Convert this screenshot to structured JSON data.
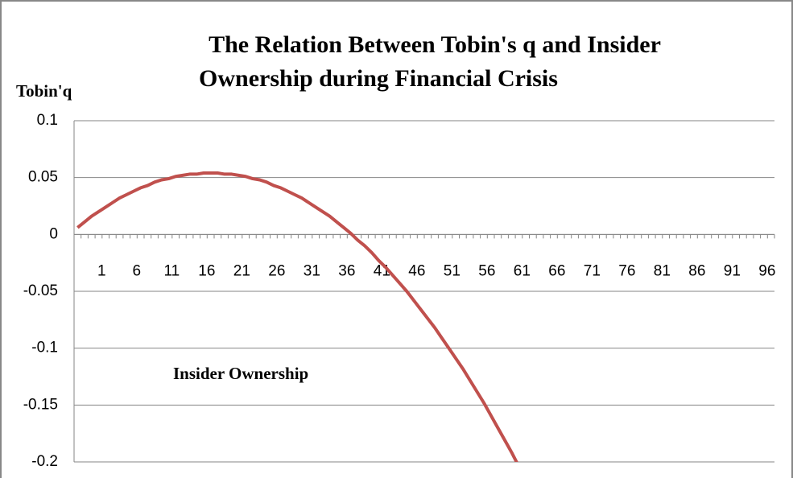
{
  "chart_data": {
    "type": "line",
    "title": [
      "The Relation Between Tobin's q and Insider",
      "Ownership during  Financial Crisis"
    ],
    "y_label": "Tobin'q",
    "x_label": "Insider Ownership",
    "categories": [
      "1",
      null,
      null,
      null,
      null,
      "6",
      null,
      null,
      null,
      null,
      "11",
      null,
      null,
      null,
      null,
      "16",
      null,
      null,
      null,
      null,
      "21",
      null,
      null,
      null,
      null,
      "26",
      null,
      null,
      null,
      null,
      "31",
      null,
      null,
      null,
      null,
      "36",
      null,
      null,
      null,
      null,
      "41",
      null,
      null,
      null,
      null,
      "46",
      null,
      null,
      null,
      null,
      "51",
      null,
      null,
      null,
      null,
      "56",
      null,
      null,
      null,
      null,
      "61",
      null,
      null,
      null,
      null,
      "66",
      null,
      null,
      null,
      null,
      "71",
      null,
      null,
      null,
      null,
      "76",
      null,
      null,
      null,
      null,
      "81",
      null,
      null,
      null,
      null,
      "86",
      null,
      null,
      null,
      null,
      "91",
      null,
      null,
      null,
      null,
      "96",
      null,
      null,
      null,
      null
    ],
    "series": [
      {
        "color": "#c0504d",
        "values": [
          0.006,
          0.011,
          0.016,
          0.02,
          0.024,
          0.028,
          0.032,
          0.035,
          0.038,
          0.041,
          0.043,
          0.046,
          0.048,
          0.049,
          0.051,
          0.052,
          0.053,
          0.053,
          0.054,
          0.054,
          0.054,
          0.053,
          0.053,
          0.052,
          0.051,
          0.049,
          0.048,
          0.046,
          0.043,
          0.041,
          0.038,
          0.035,
          0.032,
          0.028,
          0.024,
          0.02,
          0.016,
          0.011,
          0.006,
          0.001,
          -0.005,
          -0.01,
          -0.016,
          -0.023,
          -0.029,
          -0.036,
          -0.043,
          -0.05,
          -0.058,
          -0.066,
          -0.074,
          -0.082,
          -0.091,
          -0.1,
          -0.109,
          -0.118,
          -0.128,
          -0.138,
          -0.148,
          -0.159,
          -0.17,
          -0.181,
          -0.192,
          -0.204,
          null,
          null,
          null,
          null,
          null,
          null,
          null,
          null,
          null,
          null,
          null,
          null,
          null,
          null,
          null,
          null,
          null,
          null,
          null,
          null,
          null,
          null,
          null,
          null,
          null,
          null,
          null,
          null,
          null,
          null,
          null,
          null,
          null,
          null,
          null,
          null
        ]
      }
    ],
    "ylim": [
      -0.2,
      0.1
    ],
    "yticks": [
      -0.2,
      -0.15,
      -0.1,
      -0.05,
      0,
      0.05,
      0.1
    ],
    "grid": true
  }
}
